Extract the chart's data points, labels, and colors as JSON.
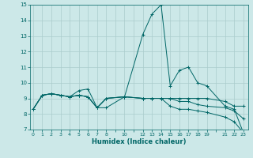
{
  "xlabel": "Humidex (Indice chaleur)",
  "bg_color": "#cce8e8",
  "grid_color": "#aacccc",
  "line_color": "#006666",
  "x_ticks": [
    0,
    1,
    2,
    3,
    4,
    5,
    6,
    7,
    8,
    10,
    12,
    13,
    14,
    15,
    16,
    17,
    18,
    19,
    21,
    22,
    23
  ],
  "x_all_ticks": [
    0,
    1,
    2,
    3,
    4,
    5,
    6,
    7,
    8,
    9,
    10,
    11,
    12,
    13,
    14,
    15,
    16,
    17,
    18,
    19,
    20,
    21,
    22,
    23
  ],
  "xlim": [
    -0.3,
    23.5
  ],
  "ylim": [
    7,
    15
  ],
  "yticks": [
    7,
    8,
    9,
    10,
    11,
    12,
    13,
    14,
    15
  ],
  "series": [
    [
      8.3,
      9.2,
      9.3,
      9.2,
      9.1,
      9.5,
      9.6,
      8.4,
      8.4,
      9.1,
      13.1,
      14.4,
      15.0,
      9.8,
      10.8,
      11.0,
      10.0,
      9.8,
      8.5,
      8.3,
      6.8
    ],
    [
      8.3,
      9.2,
      9.3,
      9.2,
      9.1,
      9.2,
      9.1,
      8.4,
      9.0,
      9.1,
      9.0,
      9.0,
      9.0,
      9.0,
      9.0,
      9.0,
      9.0,
      9.0,
      8.8,
      8.5,
      8.5
    ],
    [
      8.3,
      9.2,
      9.3,
      9.2,
      9.1,
      9.2,
      9.1,
      8.4,
      9.0,
      9.1,
      9.0,
      9.0,
      9.0,
      9.0,
      8.8,
      8.8,
      8.6,
      8.5,
      8.4,
      8.2,
      7.7
    ],
    [
      8.3,
      9.2,
      9.3,
      9.2,
      9.1,
      9.2,
      9.1,
      8.4,
      9.0,
      9.1,
      9.0,
      9.0,
      9.0,
      8.5,
      8.3,
      8.3,
      8.2,
      8.1,
      7.8,
      7.5,
      6.8
    ]
  ]
}
